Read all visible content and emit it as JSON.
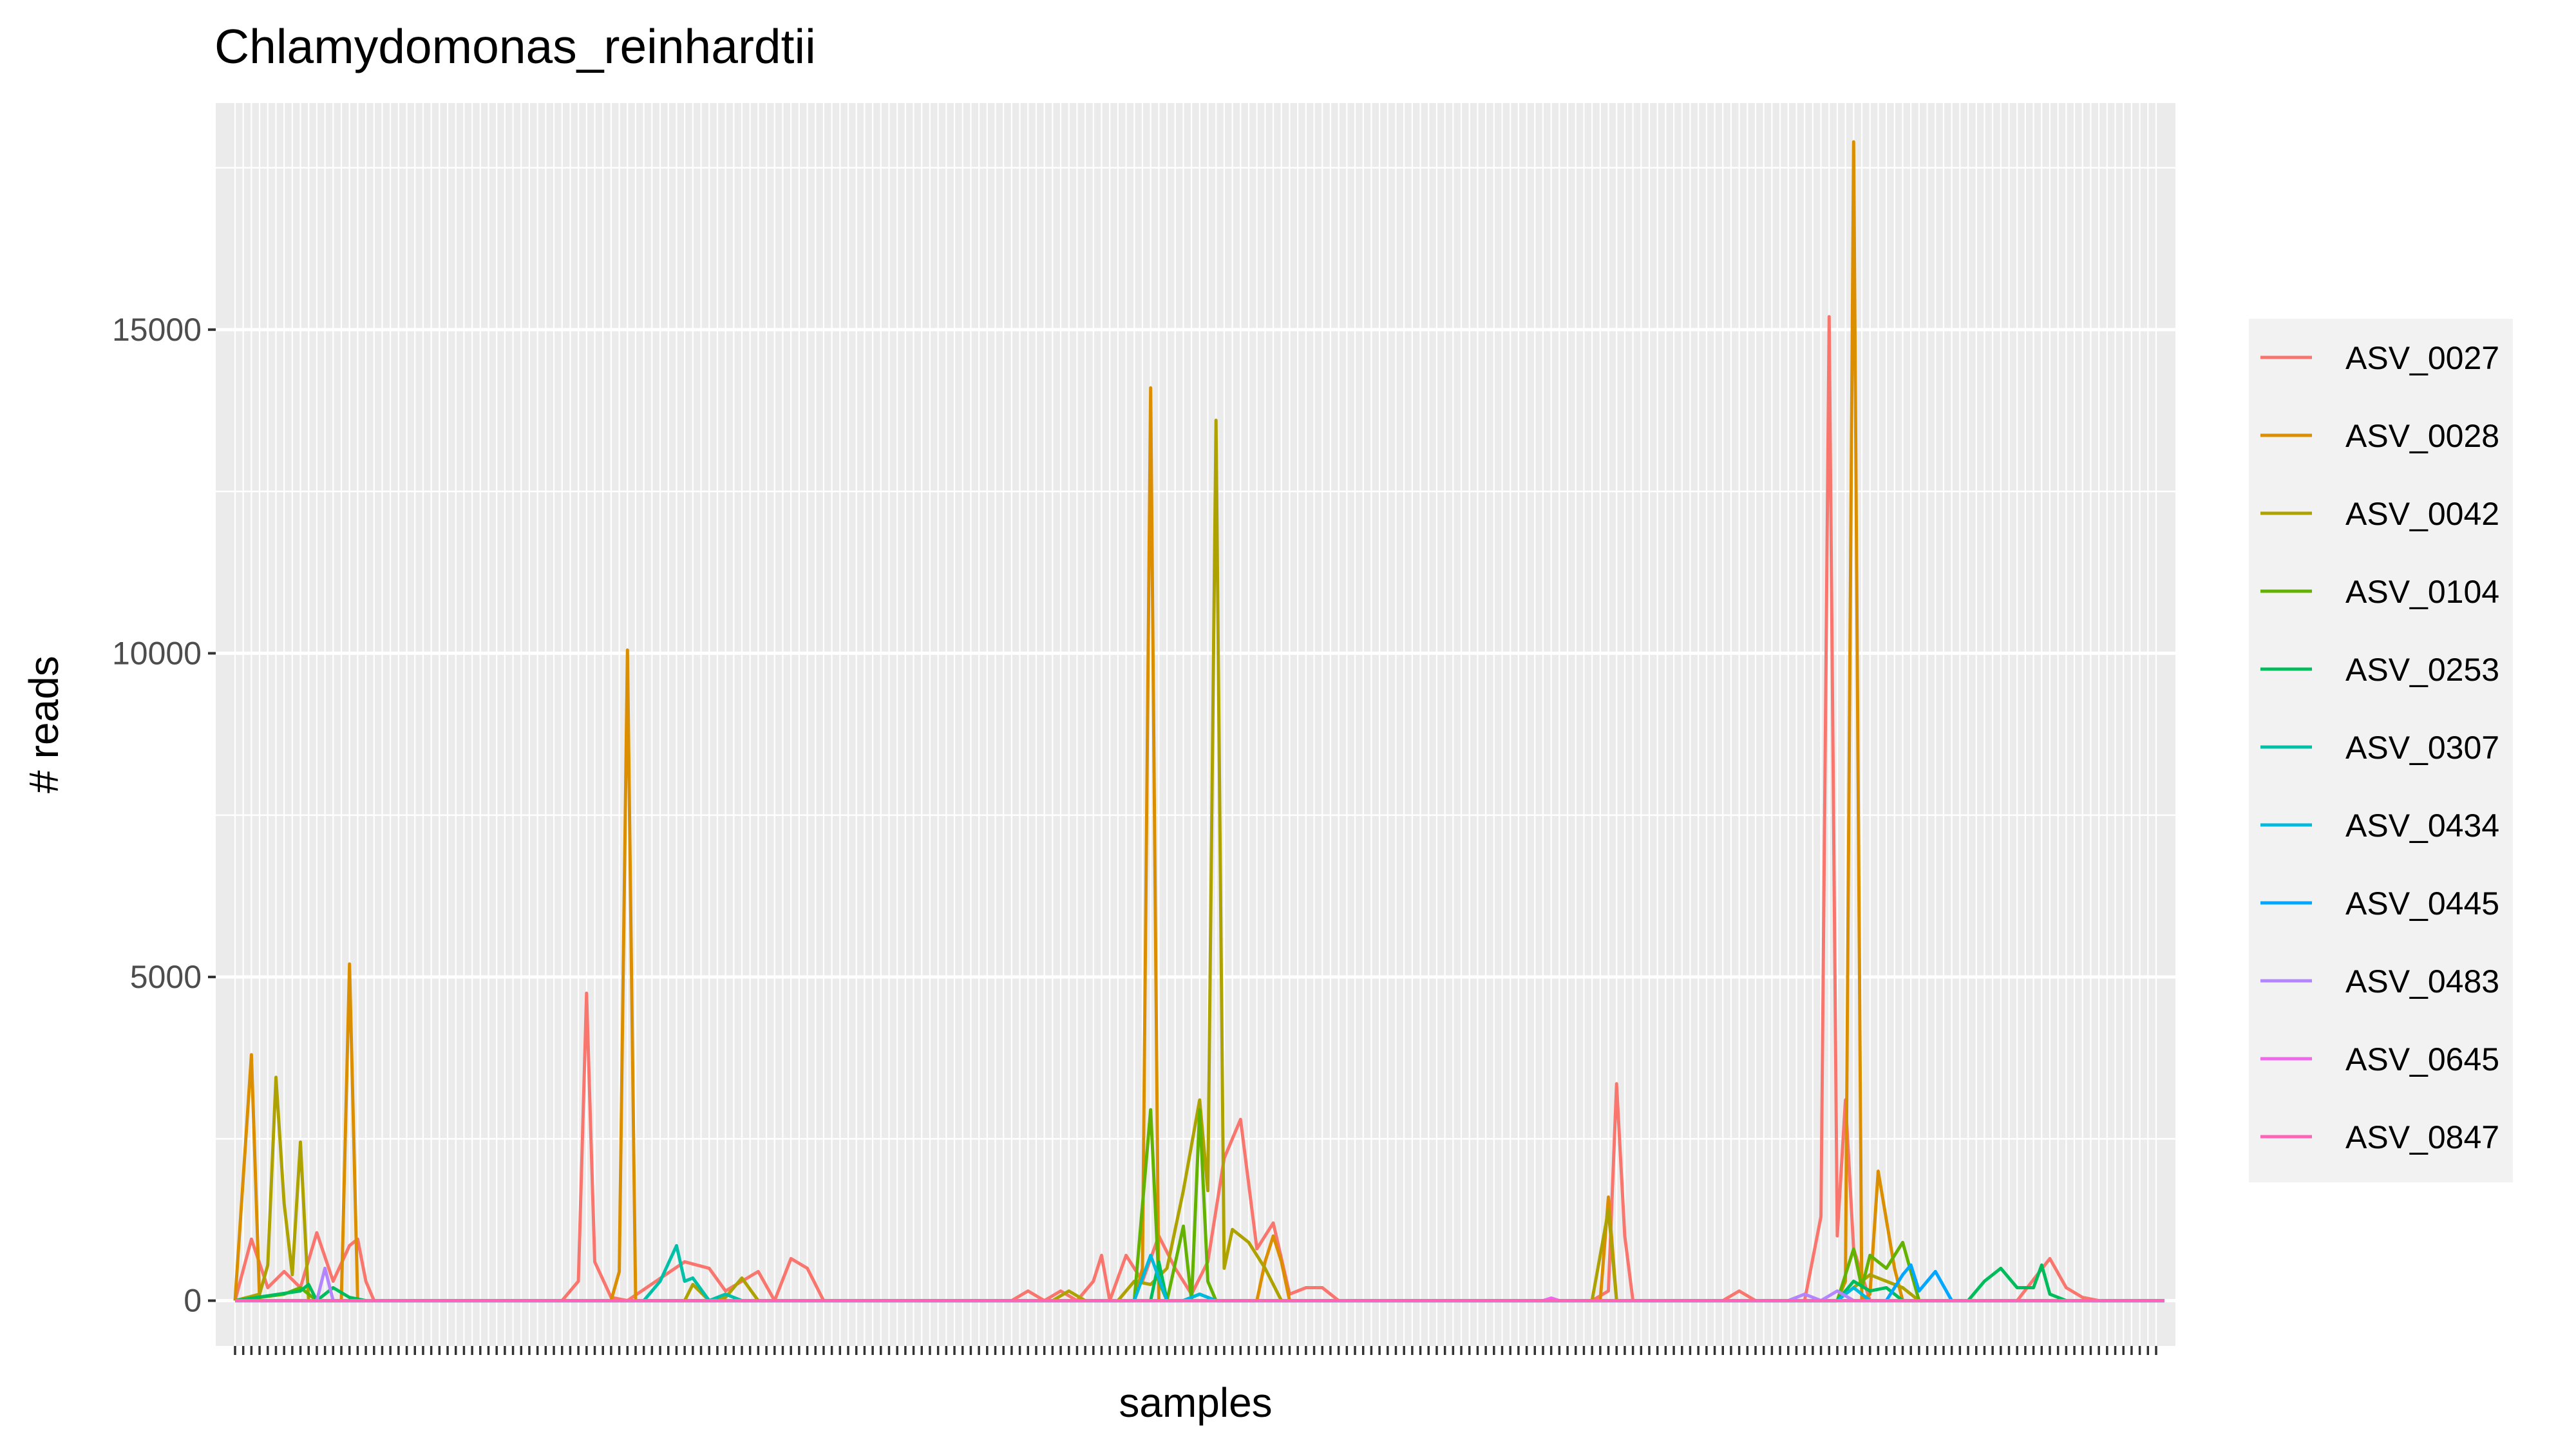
{
  "chart_data": {
    "type": "line",
    "title": "Chlamydomonas_reinhardtii",
    "xlabel": "samples",
    "ylabel": "# reads",
    "x_axis": "categorical samples (tick labels not printed)",
    "n_samples": 236,
    "ylim": [
      -700,
      18500
    ],
    "yticks": [
      0,
      5000,
      10000,
      15000
    ],
    "grid": true,
    "legend_position": "right",
    "series": [
      {
        "name": "ASV_0027",
        "color": "#F8766D",
        "points": [
          [
            0,
            0
          ],
          [
            2,
            950
          ],
          [
            4,
            200
          ],
          [
            6,
            450
          ],
          [
            8,
            200
          ],
          [
            10,
            1050
          ],
          [
            12,
            300
          ],
          [
            14,
            850
          ],
          [
            15,
            950
          ],
          [
            16,
            300
          ],
          [
            17,
            0
          ],
          [
            40,
            0
          ],
          [
            42,
            300
          ],
          [
            43,
            4750
          ],
          [
            44,
            600
          ],
          [
            46,
            50
          ],
          [
            48,
            0
          ],
          [
            55,
            600
          ],
          [
            58,
            500
          ],
          [
            60,
            150
          ],
          [
            62,
            300
          ],
          [
            64,
            450
          ],
          [
            66,
            0
          ],
          [
            68,
            650
          ],
          [
            70,
            500
          ],
          [
            72,
            0
          ],
          [
            95,
            0
          ],
          [
            97,
            150
          ],
          [
            99,
            0
          ],
          [
            101,
            150
          ],
          [
            103,
            0
          ],
          [
            105,
            300
          ],
          [
            106,
            700
          ],
          [
            107,
            0
          ],
          [
            109,
            700
          ],
          [
            111,
            300
          ],
          [
            113,
            1000
          ],
          [
            115,
            500
          ],
          [
            117,
            100
          ],
          [
            119,
            600
          ],
          [
            121,
            2200
          ],
          [
            123,
            2800
          ],
          [
            125,
            800
          ],
          [
            127,
            1200
          ],
          [
            129,
            100
          ],
          [
            131,
            200
          ],
          [
            133,
            200
          ],
          [
            135,
            0
          ],
          [
            166,
            0
          ],
          [
            168,
            150
          ],
          [
            169,
            3350
          ],
          [
            170,
            1000
          ],
          [
            171,
            0
          ],
          [
            182,
            0
          ],
          [
            184,
            150
          ],
          [
            186,
            0
          ],
          [
            192,
            0
          ],
          [
            194,
            1300
          ],
          [
            195,
            15200
          ],
          [
            196,
            1000
          ],
          [
            197,
            3100
          ],
          [
            198,
            800
          ],
          [
            200,
            0
          ],
          [
            218,
            0
          ],
          [
            222,
            650
          ],
          [
            224,
            200
          ],
          [
            226,
            50
          ],
          [
            228,
            0
          ],
          [
            236,
            0
          ]
        ]
      },
      {
        "name": "ASV_0028",
        "color": "#DB8E00",
        "points": [
          [
            0,
            0
          ],
          [
            2,
            3800
          ],
          [
            3,
            0
          ],
          [
            12,
            0
          ],
          [
            13,
            0
          ],
          [
            14,
            5200
          ],
          [
            15,
            0
          ],
          [
            46,
            0
          ],
          [
            47,
            450
          ],
          [
            48,
            10050
          ],
          [
            49,
            0
          ],
          [
            110,
            0
          ],
          [
            111,
            500
          ],
          [
            112,
            14100
          ],
          [
            113,
            0
          ],
          [
            125,
            0
          ],
          [
            126,
            600
          ],
          [
            127,
            1000
          ],
          [
            128,
            600
          ],
          [
            129,
            0
          ],
          [
            167,
            0
          ],
          [
            168,
            1600
          ],
          [
            169,
            0
          ],
          [
            196,
            0
          ],
          [
            197,
            300
          ],
          [
            198,
            17900
          ],
          [
            199,
            0
          ],
          [
            200,
            100
          ],
          [
            201,
            2000
          ],
          [
            203,
            500
          ],
          [
            204,
            0
          ],
          [
            236,
            0
          ]
        ]
      },
      {
        "name": "ASV_0042",
        "color": "#AEA200",
        "points": [
          [
            0,
            0
          ],
          [
            3,
            100
          ],
          [
            4,
            550
          ],
          [
            5,
            3450
          ],
          [
            6,
            1500
          ],
          [
            7,
            400
          ],
          [
            8,
            2450
          ],
          [
            9,
            0
          ],
          [
            10,
            0
          ],
          [
            40,
            0
          ],
          [
            55,
            0
          ],
          [
            56,
            250
          ],
          [
            58,
            0
          ],
          [
            60,
            50
          ],
          [
            62,
            350
          ],
          [
            64,
            0
          ],
          [
            100,
            0
          ],
          [
            102,
            150
          ],
          [
            104,
            0
          ],
          [
            108,
            0
          ],
          [
            110,
            300
          ],
          [
            112,
            250
          ],
          [
            114,
            500
          ],
          [
            116,
            1700
          ],
          [
            118,
            3100
          ],
          [
            119,
            1700
          ],
          [
            120,
            13600
          ],
          [
            121,
            500
          ],
          [
            122,
            1100
          ],
          [
            124,
            900
          ],
          [
            126,
            500
          ],
          [
            128,
            0
          ],
          [
            166,
            0
          ],
          [
            168,
            1400
          ],
          [
            169,
            0
          ],
          [
            196,
            0
          ],
          [
            198,
            200
          ],
          [
            200,
            400
          ],
          [
            202,
            300
          ],
          [
            204,
            200
          ],
          [
            206,
            0
          ],
          [
            236,
            0
          ]
        ]
      },
      {
        "name": "ASV_0104",
        "color": "#64B200",
        "points": [
          [
            0,
            0
          ],
          [
            6,
            100
          ],
          [
            8,
            200
          ],
          [
            10,
            0
          ],
          [
            110,
            0
          ],
          [
            112,
            2950
          ],
          [
            113,
            300
          ],
          [
            114,
            0
          ],
          [
            116,
            1150
          ],
          [
            117,
            0
          ],
          [
            118,
            2950
          ],
          [
            119,
            300
          ],
          [
            120,
            0
          ],
          [
            196,
            0
          ],
          [
            198,
            800
          ],
          [
            199,
            200
          ],
          [
            200,
            700
          ],
          [
            202,
            500
          ],
          [
            204,
            900
          ],
          [
            206,
            0
          ],
          [
            236,
            0
          ]
        ]
      },
      {
        "name": "ASV_0253",
        "color": "#00BD5C",
        "points": [
          [
            0,
            0
          ],
          [
            8,
            150
          ],
          [
            9,
            250
          ],
          [
            10,
            0
          ],
          [
            12,
            200
          ],
          [
            14,
            50
          ],
          [
            16,
            0
          ],
          [
            112,
            0
          ],
          [
            113,
            600
          ],
          [
            114,
            0
          ],
          [
            116,
            0
          ],
          [
            118,
            100
          ],
          [
            120,
            0
          ],
          [
            196,
            0
          ],
          [
            198,
            300
          ],
          [
            200,
            150
          ],
          [
            202,
            200
          ],
          [
            204,
            0
          ],
          [
            212,
            0
          ],
          [
            214,
            300
          ],
          [
            216,
            500
          ],
          [
            218,
            200
          ],
          [
            220,
            200
          ],
          [
            221,
            550
          ],
          [
            222,
            100
          ],
          [
            224,
            0
          ],
          [
            236,
            0
          ]
        ]
      },
      {
        "name": "ASV_0307",
        "color": "#00C1A7",
        "points": [
          [
            0,
            0
          ],
          [
            50,
            0
          ],
          [
            52,
            300
          ],
          [
            54,
            850
          ],
          [
            55,
            300
          ],
          [
            56,
            350
          ],
          [
            58,
            0
          ],
          [
            60,
            100
          ],
          [
            62,
            0
          ],
          [
            236,
            0
          ]
        ]
      },
      {
        "name": "ASV_0434",
        "color": "#00BADE",
        "points": [
          [
            0,
            0
          ],
          [
            110,
            0
          ],
          [
            112,
            700
          ],
          [
            114,
            0
          ],
          [
            116,
            0
          ],
          [
            118,
            100
          ],
          [
            120,
            0
          ],
          [
            196,
            0
          ],
          [
            198,
            200
          ],
          [
            200,
            0
          ],
          [
            236,
            0
          ]
        ]
      },
      {
        "name": "ASV_0445",
        "color": "#00A6FF",
        "points": [
          [
            0,
            0
          ],
          [
            202,
            0
          ],
          [
            204,
            400
          ],
          [
            205,
            550
          ],
          [
            206,
            150
          ],
          [
            208,
            450
          ],
          [
            210,
            0
          ],
          [
            236,
            0
          ]
        ]
      },
      {
        "name": "ASV_0483",
        "color": "#B385FF",
        "points": [
          [
            0,
            0
          ],
          [
            10,
            0
          ],
          [
            11,
            500
          ],
          [
            12,
            0
          ],
          [
            190,
            0
          ],
          [
            192,
            100
          ],
          [
            194,
            0
          ],
          [
            196,
            150
          ],
          [
            198,
            0
          ],
          [
            236,
            0
          ]
        ]
      },
      {
        "name": "ASV_0645",
        "color": "#EF67EB",
        "points": [
          [
            0,
            0
          ],
          [
            160,
            0
          ],
          [
            161,
            40
          ],
          [
            162,
            0
          ],
          [
            236,
            0
          ]
        ]
      },
      {
        "name": "ASV_0847",
        "color": "#FF63B6",
        "points": [
          [
            0,
            0
          ],
          [
            236,
            0
          ]
        ]
      }
    ]
  }
}
